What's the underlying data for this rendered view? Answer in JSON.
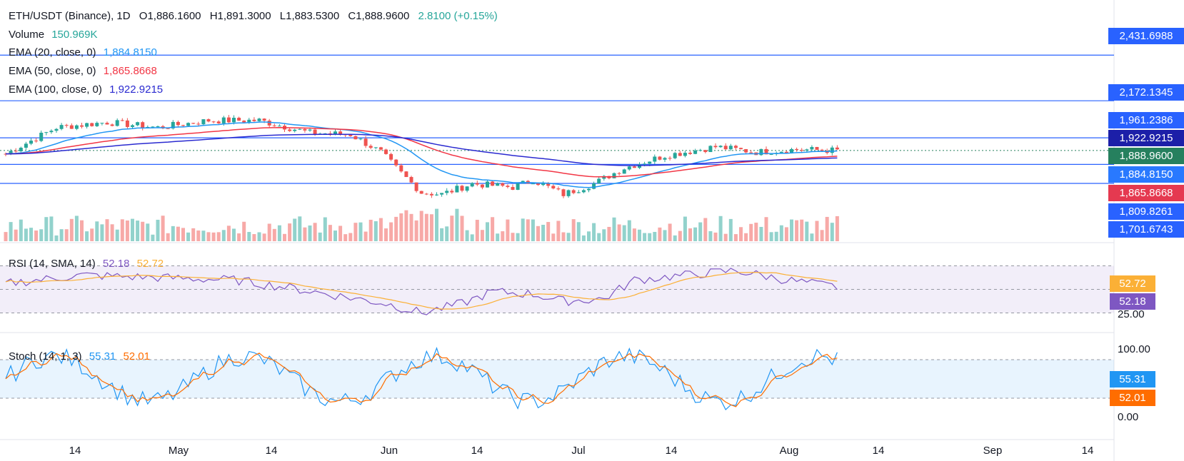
{
  "header": {
    "symbol": "ETH/USDT (Binance), 1D",
    "open": "O1,886.1600",
    "high": "H1,891.3000",
    "low": "L1,883.5300",
    "close": "C1,888.9600",
    "change": "2.8100 (+0.15%)"
  },
  "legend": {
    "volume_label": "Volume",
    "volume_value": "150.969K",
    "ema20_label": "EMA (20, close, 0)",
    "ema20_value": "1,884.8150",
    "ema50_label": "EMA (50, close, 0)",
    "ema50_value": "1,865.8668",
    "ema100_label": "EMA (100, close, 0)",
    "ema100_value": "1,922.9215"
  },
  "rsi": {
    "label": "RSI (14, SMA, 14)",
    "value": "52.18",
    "sma": "52.72",
    "axis": "25.00"
  },
  "stoch": {
    "label": "Stoch (14, 1, 3)",
    "k": "55.31",
    "d": "52.01",
    "axis_top": "100.00",
    "axis_bottom": "0.00"
  },
  "price_tags": [
    {
      "text": "2,431.6988",
      "color": "#2962ff"
    },
    {
      "text": "2,172.1345",
      "color": "#2962ff"
    },
    {
      "text": "1,961.2386",
      "color": "#2962ff"
    },
    {
      "text": "1,922.9215",
      "color": "#1c1fa8"
    },
    {
      "text": "1,888.9600",
      "color": "#26805e"
    },
    {
      "text": "1,884.8150",
      "color": "#2979ff"
    },
    {
      "text": "1,865.8668",
      "color": "#e53950"
    },
    {
      "text": "1,809.8261",
      "color": "#2962ff"
    },
    {
      "text": "1,701.6743",
      "color": "#2962ff"
    }
  ],
  "x_axis": [
    "14",
    "May",
    "14",
    "Jun",
    "14",
    "Jul",
    "14",
    "Aug",
    "14",
    "Sep",
    "14"
  ],
  "colors": {
    "up": "#26a69a",
    "down": "#ef5350",
    "ema20": "#2196f3",
    "ema50": "#f23645",
    "ema100": "#2a2ad0",
    "rsi": "#7e57c2",
    "rsi_sma": "#fbb036",
    "stoch_k": "#2196f3",
    "stoch_d": "#ff6d00"
  },
  "chart_data": {
    "type": "line",
    "title": "ETH/USDT (Binance), 1D",
    "horizontal_levels": [
      2431.6988,
      2172.1345,
      1961.2386,
      1809.8261,
      1701.6743
    ],
    "last_close": 1888.96,
    "series": [
      {
        "name": "EMA (20, close, 0)",
        "last": 1884.815
      },
      {
        "name": "EMA (50, close, 0)",
        "last": 1865.8668
      },
      {
        "name": "EMA (100, close, 0)",
        "last": 1922.9215
      },
      {
        "name": "RSI (14, SMA, 14)",
        "last": 52.18
      },
      {
        "name": "Stoch (14, 1, 3)",
        "last": 55.31
      }
    ]
  }
}
